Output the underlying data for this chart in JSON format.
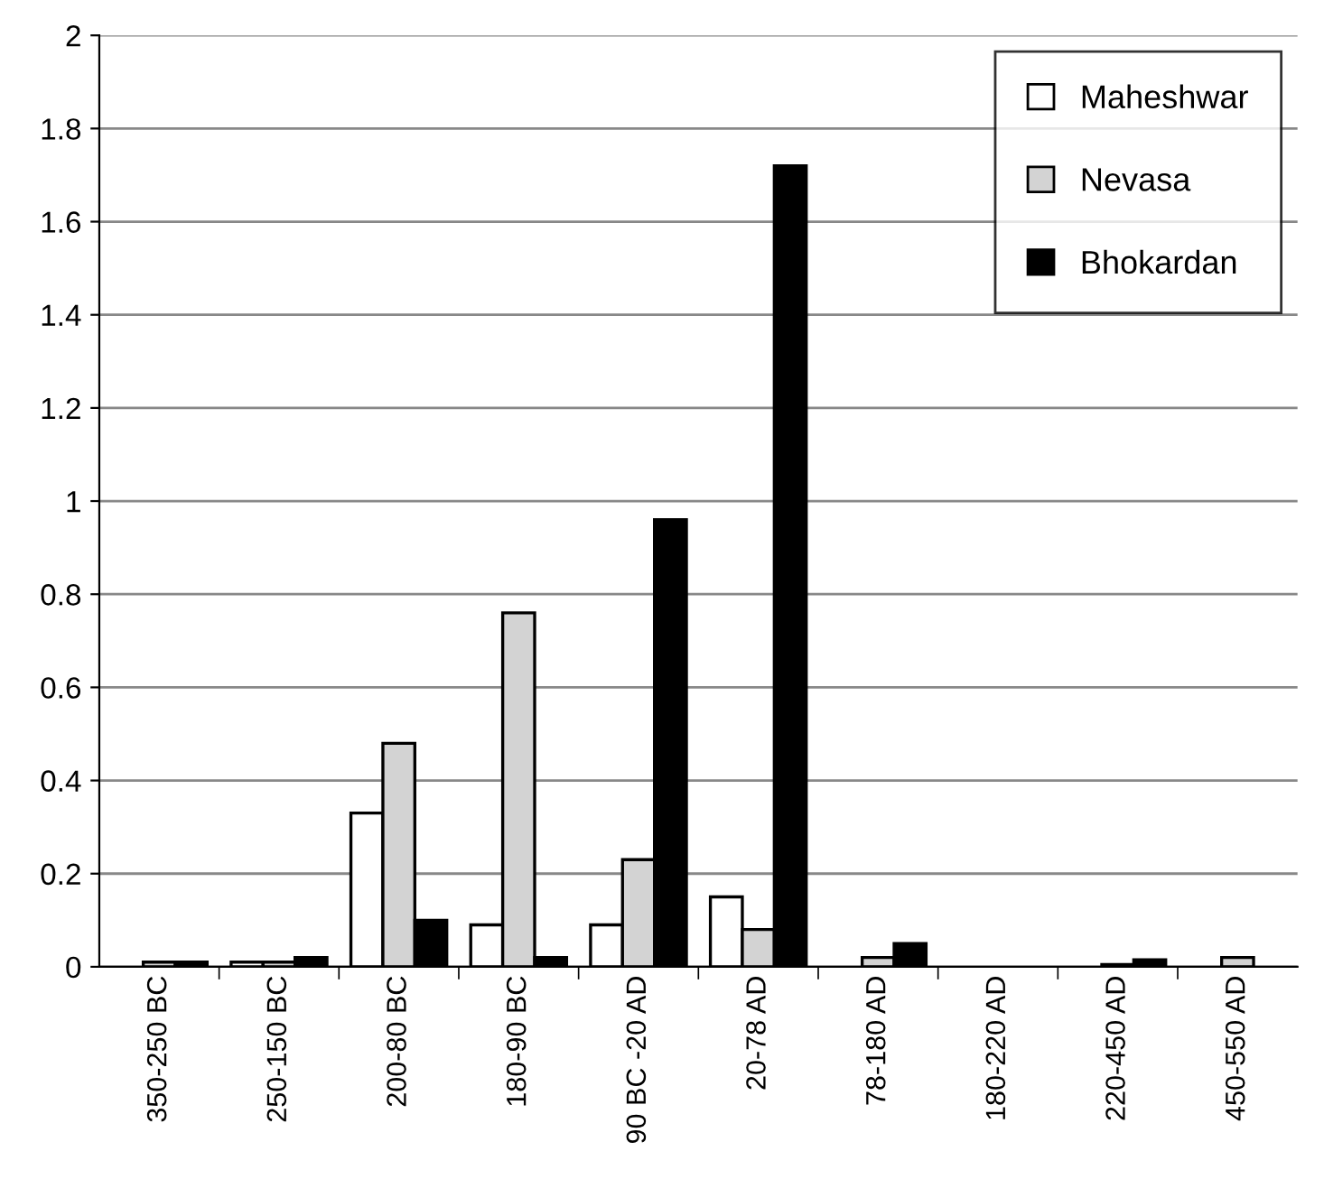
{
  "chart_data": {
    "type": "bar",
    "categories": [
      "350-250 BC",
      "250-150 BC",
      "200-80 BC",
      "180-90 BC",
      "90 BC -20 AD",
      "20-78 AD",
      "78-180 AD",
      "180-220 AD",
      "220-450 AD",
      "450-550 AD"
    ],
    "series": [
      {
        "name": "Maheshwar",
        "color": "#ffffff",
        "values": [
          null,
          0.01,
          0.33,
          0.09,
          0.09,
          0.15,
          null,
          null,
          null,
          null
        ]
      },
      {
        "name": "Nevasa",
        "color": "#d3d3d3",
        "values": [
          0.01,
          0.01,
          0.48,
          0.76,
          0.23,
          0.08,
          0.02,
          null,
          0.005,
          0.02
        ]
      },
      {
        "name": "Bhokardan",
        "color": "#000000",
        "values": [
          0.01,
          0.02,
          0.1,
          0.02,
          0.96,
          1.72,
          0.05,
          null,
          0.015,
          null
        ]
      }
    ],
    "ylim": [
      0,
      2
    ],
    "yticks": [
      0,
      0.2,
      0.4,
      0.6,
      0.8,
      1,
      1.2,
      1.4,
      1.6,
      1.8,
      2
    ],
    "grid": "y",
    "legend": "top right"
  }
}
